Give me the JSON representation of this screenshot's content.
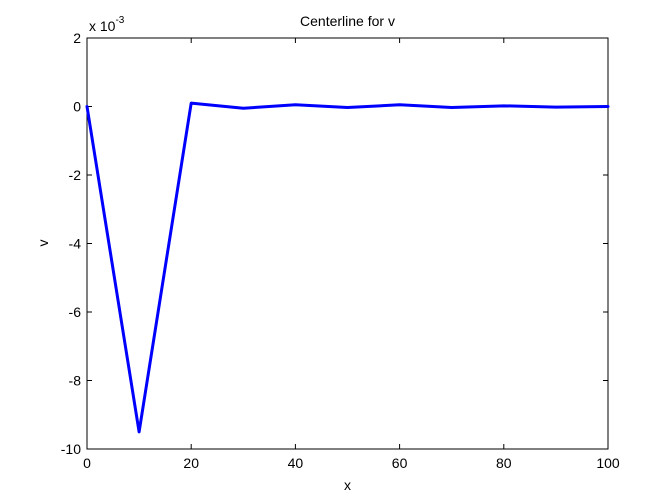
{
  "chart_data": {
    "type": "line",
    "title": "Centerline for v",
    "xlabel": "x",
    "ylabel": "v",
    "exponent_base": "x 10",
    "exponent_power": "-3",
    "xlim": [
      0,
      100
    ],
    "ylim": [
      -0.01,
      0.002
    ],
    "xticks": [
      0,
      20,
      40,
      60,
      80,
      100
    ],
    "xtick_labels": [
      "0",
      "20",
      "40",
      "60",
      "80",
      "100"
    ],
    "yticks": [
      -0.01,
      -0.008,
      -0.006,
      -0.004,
      -0.002,
      0,
      0.002
    ],
    "ytick_labels": [
      "-10",
      "-8",
      "-6",
      "-4",
      "-2",
      "0",
      "2"
    ],
    "grid": false,
    "series": [
      {
        "color": "#0000ff",
        "x": [
          0,
          10,
          20,
          30,
          40,
          50,
          60,
          70,
          80,
          90,
          100
        ],
        "y": [
          0,
          -0.0095,
          0.0001,
          -5e-05,
          5e-05,
          -3e-05,
          5e-05,
          -3e-05,
          2e-05,
          -2e-05,
          0
        ]
      }
    ]
  }
}
